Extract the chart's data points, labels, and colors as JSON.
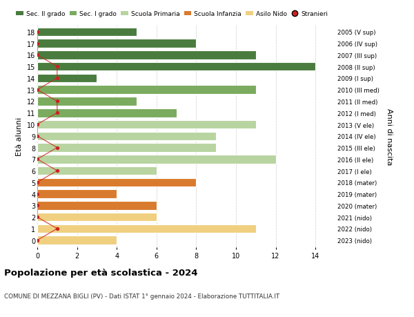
{
  "ages": [
    18,
    17,
    16,
    15,
    14,
    13,
    12,
    11,
    10,
    9,
    8,
    7,
    6,
    5,
    4,
    3,
    2,
    1,
    0
  ],
  "years": [
    "2005 (V sup)",
    "2006 (IV sup)",
    "2007 (III sup)",
    "2008 (II sup)",
    "2009 (I sup)",
    "2010 (III med)",
    "2011 (II med)",
    "2012 (I med)",
    "2013 (V ele)",
    "2014 (IV ele)",
    "2015 (III ele)",
    "2016 (II ele)",
    "2017 (I ele)",
    "2018 (mater)",
    "2019 (mater)",
    "2020 (mater)",
    "2021 (nido)",
    "2022 (nido)",
    "2023 (nido)"
  ],
  "bar_values": [
    5,
    8,
    11,
    14,
    3,
    11,
    5,
    7,
    11,
    9,
    9,
    12,
    6,
    8,
    4,
    6,
    6,
    11,
    4
  ],
  "bar_colors": [
    "#4a7c3f",
    "#4a7c3f",
    "#4a7c3f",
    "#4a7c3f",
    "#4a7c3f",
    "#7aab5e",
    "#7aab5e",
    "#7aab5e",
    "#b8d4a0",
    "#b8d4a0",
    "#b8d4a0",
    "#b8d4a0",
    "#b8d4a0",
    "#d97b2e",
    "#d97b2e",
    "#d97b2e",
    "#f0d080",
    "#f0d080",
    "#f0d080"
  ],
  "stranieri_values": [
    0,
    0,
    0,
    1,
    1,
    0,
    1,
    1,
    0,
    0,
    1,
    0,
    1,
    0,
    0,
    0,
    0,
    1,
    0
  ],
  "xlabel": "",
  "ylabel_left": "Età alunni",
  "ylabel_right": "Anni di nascita",
  "title": "Popolazione per età scolastica - 2024",
  "subtitle": "COMUNE DI MEZZANA BIGLI (PV) - Dati ISTAT 1° gennaio 2024 - Elaborazione TUTTITALIA.IT",
  "xlim": [
    0,
    15
  ],
  "legend_labels": [
    "Sec. II grado",
    "Sec. I grado",
    "Scuola Primaria",
    "Scuola Infanzia",
    "Asilo Nido",
    "Stranieri"
  ],
  "legend_colors": [
    "#4a7c3f",
    "#7aab5e",
    "#b8d4a0",
    "#d97b2e",
    "#f0d080",
    "#cc2222"
  ],
  "bg_color": "#ffffff",
  "grid_color": "#cccccc",
  "bar_height": 0.75,
  "stranieri_color": "#cc2222",
  "stranieri_line_color": "#cc2222"
}
